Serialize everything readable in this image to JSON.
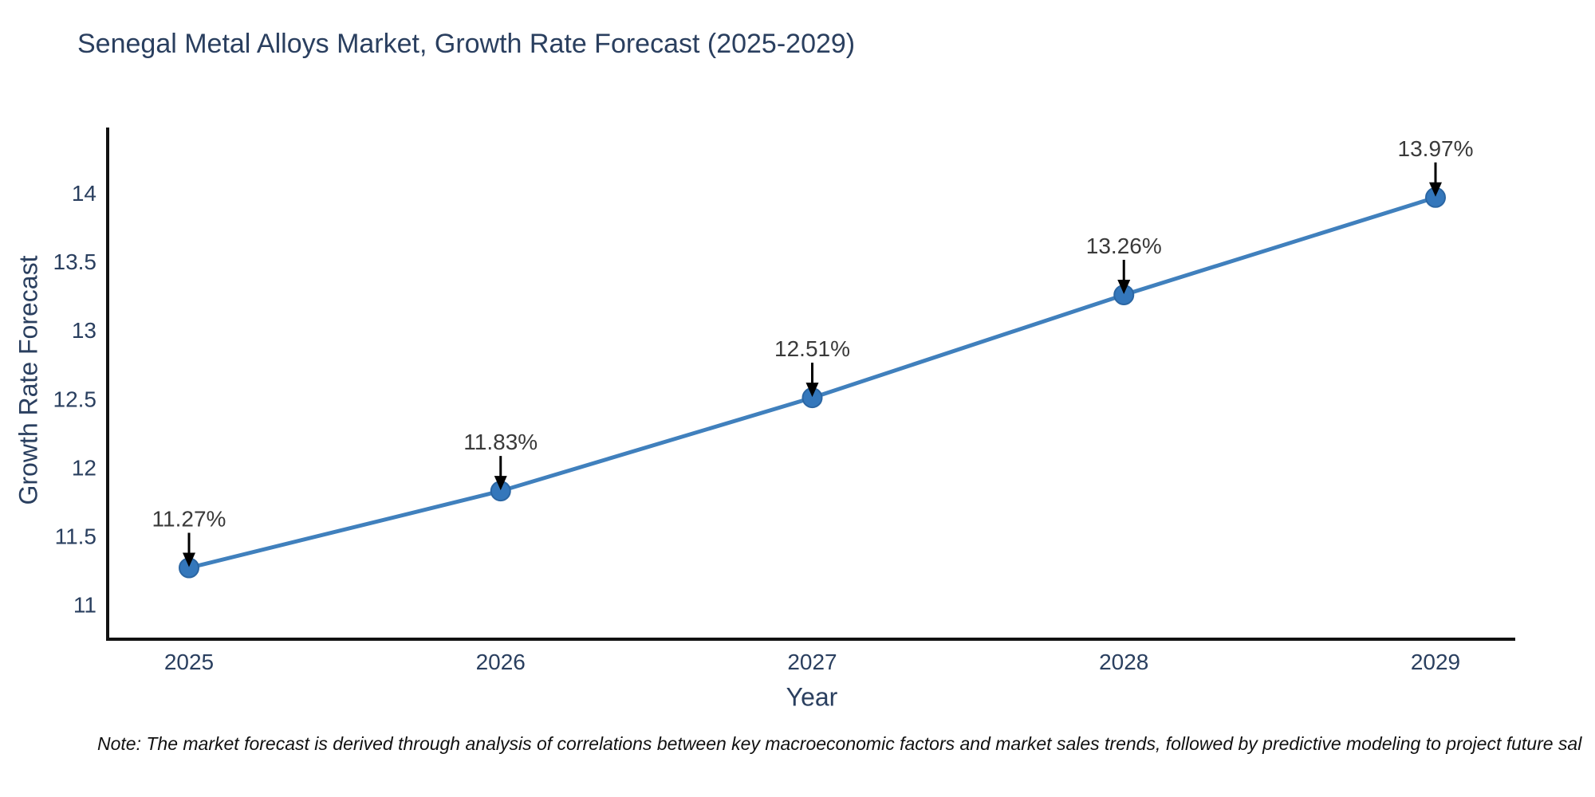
{
  "title": {
    "text": "Senegal Metal Alloys Market, Growth Rate Forecast (2025-2029)"
  },
  "note": {
    "text": "Note: The market forecast is derived through analysis of correlations between key macroeconomic factors and market sales trends, followed by predictive modeling to project future sal"
  },
  "chart_data": {
    "type": "line",
    "title": "Senegal Metal Alloys Market, Growth Rate Forecast (2025-2029)",
    "xlabel": "Year",
    "ylabel": "Growth Rate Forecast",
    "categories": [
      2025,
      2026,
      2027,
      2028,
      2029
    ],
    "series": [
      {
        "name": "Growth Rate Forecast",
        "values": [
          11.27,
          11.83,
          12.51,
          13.26,
          13.97
        ],
        "point_labels": [
          "11.27%",
          "11.83%",
          "12.51%",
          "13.26%",
          "13.97%"
        ]
      }
    ],
    "y_ticks": [
      11,
      11.5,
      12,
      12.5,
      13,
      13.5,
      14
    ],
    "ylim": [
      10.75,
      14.48
    ],
    "grid": false,
    "legend": "none",
    "annotation_style": "text-with-down-arrow",
    "colors": {
      "line": "#4080bd",
      "marker_fill": "#3477bb",
      "marker_edge": "#2b66a3",
      "axis": "#111111",
      "tick_label": "#2a3f5f",
      "annotation_text": "#3a3a3a",
      "arrow": "#000000",
      "background": "#ffffff"
    }
  }
}
